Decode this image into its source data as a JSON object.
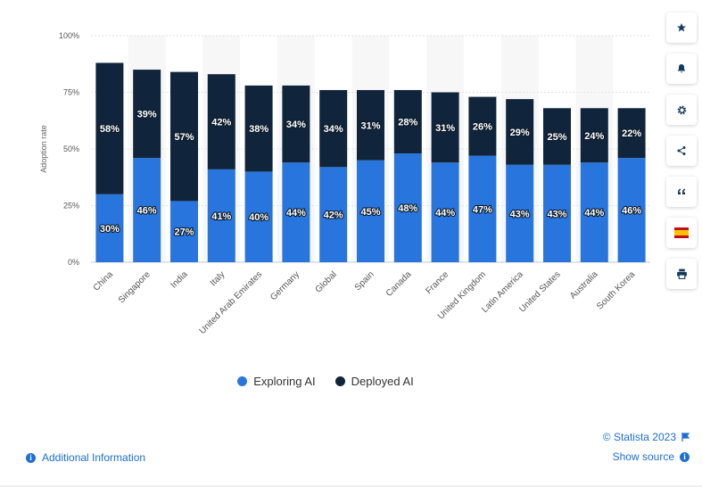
{
  "chart_data": {
    "type": "bar",
    "stacked": true,
    "categories": [
      "China",
      "Singapore",
      "India",
      "Italy",
      "United Arab Emirates",
      "Germany",
      "Global",
      "Spain",
      "Canada",
      "France",
      "United Kingdom",
      "Latin America",
      "United States",
      "Australia",
      "South Korea"
    ],
    "series": [
      {
        "name": "Exploring AI",
        "color": "#2876dd",
        "values": [
          30,
          46,
          27,
          41,
          40,
          44,
          42,
          45,
          48,
          44,
          47,
          43,
          43,
          44,
          46
        ]
      },
      {
        "name": "Deployed AI",
        "color": "#10243b",
        "values": [
          58,
          39,
          57,
          42,
          38,
          34,
          34,
          31,
          28,
          31,
          26,
          29,
          25,
          24,
          22
        ]
      }
    ],
    "data_labels": {
      "Exploring AI": [
        "30%",
        "46%",
        "27%",
        "41%",
        "40%",
        "44%",
        "42%",
        "45%",
        "48%",
        "44%",
        "47%",
        "43%",
        "43%",
        "44%",
        "46%"
      ],
      "Deployed AI": [
        "58%",
        "39%",
        "57%",
        "42%",
        "38%",
        "34%",
        "34%",
        "31%",
        "28%",
        "31%",
        "26%",
        "29%",
        "25%",
        "24%",
        "22%"
      ]
    },
    "ylabel": "Adoption rate",
    "xlabel": "",
    "ylim": [
      0,
      100
    ],
    "yticks": [
      "0%",
      "25%",
      "50%",
      "75%",
      "100%"
    ],
    "ytick_values": [
      0,
      25,
      50,
      75,
      100
    ],
    "grid": true,
    "legend_position": "bottom-center"
  },
  "legend": {
    "items": [
      "Exploring AI",
      "Deployed AI"
    ]
  },
  "sidebar": {
    "buttons": [
      {
        "name": "favorite-button",
        "icon": "star-icon",
        "glyph": "★"
      },
      {
        "name": "notification-button",
        "icon": "bell-icon",
        "glyph": ""
      },
      {
        "name": "settings-button",
        "icon": "gear-icon",
        "glyph": "⚙"
      },
      {
        "name": "share-button",
        "icon": "share-icon",
        "glyph": ""
      },
      {
        "name": "cite-button",
        "icon": "quote-icon",
        "glyph": "❝"
      },
      {
        "name": "language-button",
        "icon": "spain-flag-icon",
        "glyph": ""
      },
      {
        "name": "print-button",
        "icon": "printer-icon",
        "glyph": ""
      }
    ]
  },
  "footer": {
    "credit": "© Statista 2023",
    "show_source": "Show source",
    "additional_info": "Additional Information"
  },
  "colors": {
    "accent": "#1d6fd6",
    "exploring": "#2876dd",
    "deployed": "#10243b"
  }
}
